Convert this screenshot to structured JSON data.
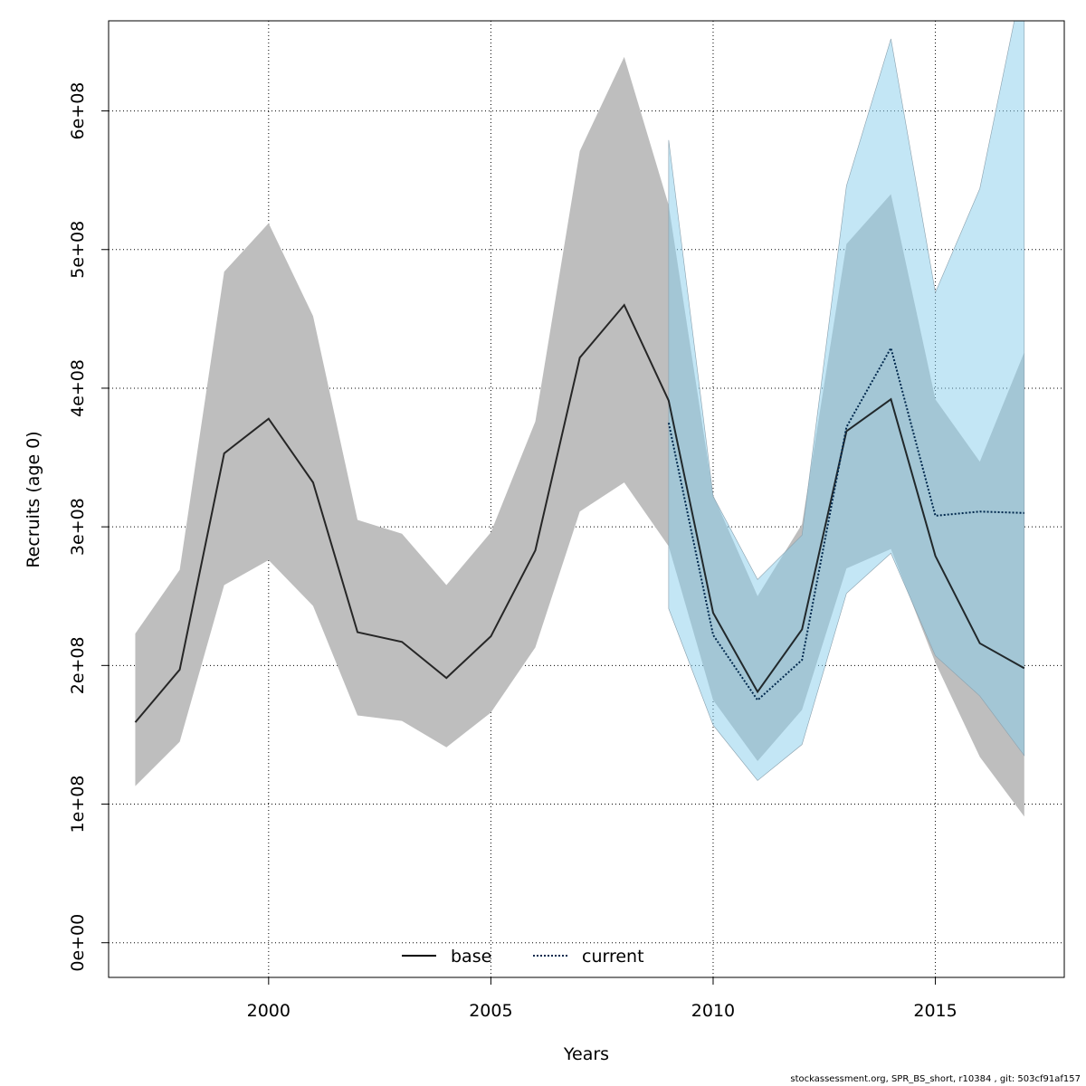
{
  "chart_data": {
    "type": "line",
    "xlabel": "Years",
    "ylabel": "Recruits (age 0)",
    "xlim": [
      1996.4,
      2017.9
    ],
    "ylim": [
      -25000000,
      665000000
    ],
    "xticks": [
      2000,
      2005,
      2010,
      2015
    ],
    "xtick_labels": [
      "2000",
      "2005",
      "2010",
      "2015"
    ],
    "yticks": [
      0,
      100000000,
      200000000,
      300000000,
      400000000,
      500000000,
      600000000
    ],
    "ytick_labels": [
      "0e+00",
      "1e+08",
      "2e+08",
      "3e+08",
      "4e+08",
      "5e+08",
      "6e+08"
    ],
    "grid": true,
    "legend_position": "bottom-center",
    "series": [
      {
        "name": "base",
        "color": "#000000",
        "band_color": "#bebebe",
        "line_style": "solid",
        "x": [
          1997,
          1998,
          1999,
          2000,
          2001,
          2002,
          2003,
          2004,
          2005,
          2006,
          2007,
          2008,
          2009,
          2010,
          2011,
          2012,
          2013,
          2014,
          2015,
          2016,
          2017
        ],
        "values": [
          159000000,
          197000000,
          353000000,
          378000000,
          332000000,
          224000000,
          217000000,
          191000000,
          221000000,
          283000000,
          422000000,
          460000000,
          391000000,
          238000000,
          181000000,
          226000000,
          369000000,
          392000000,
          279000000,
          216000000,
          198000000
        ],
        "lower": [
          113000000,
          145000000,
          258000000,
          276000000,
          243000000,
          164000000,
          160000000,
          141000000,
          166000000,
          213000000,
          311000000,
          332000000,
          286000000,
          175000000,
          131000000,
          168000000,
          270000000,
          284000000,
          202000000,
          134000000,
          91000000
        ],
        "upper": [
          223000000,
          269000000,
          484000000,
          519000000,
          452000000,
          305000000,
          295000000,
          258000000,
          296000000,
          376000000,
          571000000,
          639000000,
          532000000,
          323000000,
          250000000,
          302000000,
          504000000,
          540000000,
          392000000,
          347000000,
          426000000
        ]
      },
      {
        "name": "current",
        "color": "#00284d",
        "band_color": "#87ceeb",
        "line_style": "dotted",
        "x": [
          2009,
          2010,
          2011,
          2012,
          2013,
          2014,
          2015,
          2016,
          2017
        ],
        "values": [
          375000000,
          222000000,
          175000000,
          204000000,
          372000000,
          429000000,
          308000000,
          311000000,
          310000000
        ],
        "lower": [
          241000000,
          157000000,
          117000000,
          143000000,
          252000000,
          281000000,
          207000000,
          178000000,
          135000000
        ],
        "upper": [
          579000000,
          322000000,
          262000000,
          294000000,
          546000000,
          652000000,
          469000000,
          544000000,
          700000000
        ]
      }
    ]
  },
  "legend": {
    "items": [
      {
        "label": "base"
      },
      {
        "label": "current"
      }
    ]
  },
  "footer": {
    "text": "stockassessment.org, SPR_BS_short, r10384 , git: 503cf91af157"
  }
}
